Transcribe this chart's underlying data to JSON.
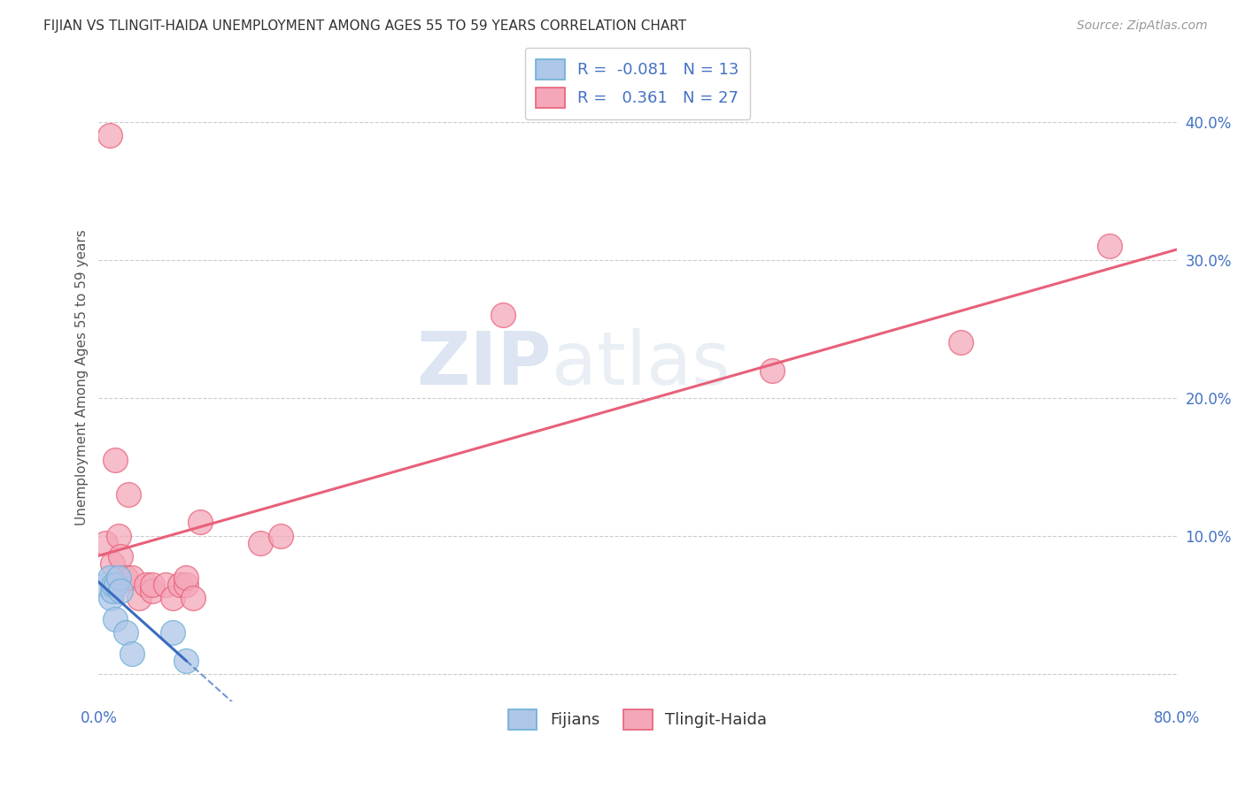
{
  "title": "FIJIAN VS TLINGIT-HAIDA UNEMPLOYMENT AMONG AGES 55 TO 59 YEARS CORRELATION CHART",
  "source": "Source: ZipAtlas.com",
  "ylabel": "Unemployment Among Ages 55 to 59 years",
  "xlim": [
    0.0,
    0.8
  ],
  "ylim": [
    -0.02,
    0.45
  ],
  "xticks": [
    0.0,
    0.1,
    0.2,
    0.3,
    0.4,
    0.5,
    0.6,
    0.7,
    0.8
  ],
  "yticks": [
    0.0,
    0.1,
    0.2,
    0.3,
    0.4
  ],
  "fijians_x": [
    0.005,
    0.008,
    0.009,
    0.01,
    0.011,
    0.012,
    0.013,
    0.015,
    0.016,
    0.02,
    0.025,
    0.055,
    0.065
  ],
  "fijians_y": [
    0.065,
    0.07,
    0.055,
    0.06,
    0.065,
    0.04,
    0.065,
    0.07,
    0.06,
    0.03,
    0.015,
    0.03,
    0.01
  ],
  "tlingit_x": [
    0.005,
    0.008,
    0.01,
    0.012,
    0.013,
    0.015,
    0.016,
    0.02,
    0.022,
    0.025,
    0.03,
    0.035,
    0.04,
    0.04,
    0.05,
    0.055,
    0.06,
    0.065,
    0.065,
    0.07,
    0.075,
    0.12,
    0.135,
    0.3,
    0.5,
    0.64,
    0.75
  ],
  "tlingit_y": [
    0.095,
    0.39,
    0.08,
    0.155,
    0.065,
    0.1,
    0.085,
    0.07,
    0.13,
    0.07,
    0.055,
    0.065,
    0.06,
    0.065,
    0.065,
    0.055,
    0.065,
    0.065,
    0.07,
    0.055,
    0.11,
    0.095,
    0.1,
    0.26,
    0.22,
    0.24,
    0.31
  ],
  "fijians_R": -0.081,
  "fijians_N": 13,
  "tlingit_R": 0.361,
  "tlingit_N": 27,
  "fijian_color": "#aec6e8",
  "fijian_edge_color": "#6baed6",
  "tlingit_color": "#f4a7b9",
  "tlingit_edge_color": "#e8607a",
  "fijian_line_color": "#3a6bbf",
  "tlingit_line_color": "#e8607a",
  "watermark_zip": "ZIP",
  "watermark_atlas": "atlas",
  "background_color": "#ffffff",
  "grid_color": "#cccccc"
}
